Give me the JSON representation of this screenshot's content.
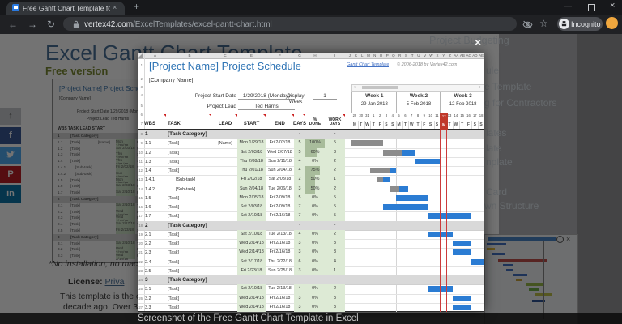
{
  "browser": {
    "tab_title": "Free Gantt Chart Template for Ex",
    "tab_close": "×",
    "new_tab": "+",
    "win_min": "—",
    "win_close": "×",
    "back": "←",
    "forward": "→",
    "reload": "↻",
    "url_domain": "vertex42.com",
    "url_path": "/ExcelTemplates/excel-gantt-chart.html",
    "star": "☆",
    "incognito_label": "Incognito"
  },
  "page": {
    "heading": "Excel Gantt Chart Template",
    "subheading": "Free version",
    "caption": "Screenshot of the Free Gantt Chart Template in Excel",
    "sidebar_fragments": [
      "Project Budgeting",
      "ule",
      "e Template",
      "g for Contractors",
      "lates",
      "late",
      "nplate",
      "Card",
      "wn Structure"
    ],
    "left_texts": {
      "quote": "*No installation, no macro",
      "license_label": "License:",
      "license_link": "Priva",
      "line1": "This template is the origin",
      "line2": "decade ago. Over 3 mill"
    },
    "social": [
      "share",
      "facebook",
      "twitter",
      "pinterest",
      "linkedin"
    ],
    "social_glyphs": [
      "↑",
      "f",
      "",
      "P",
      "in"
    ]
  },
  "lightbox": {
    "close": "×"
  },
  "sheet": {
    "title": "[Project Name] Project Schedule",
    "company": "[Company Name]",
    "link_text": "Gantt Chart Template",
    "copyright": "© 2006-2018 by Vertex42.com",
    "start_date_label": "Project Start Date",
    "start_date_value": "1/29/2018 (Monday)",
    "display_week_label": "Display Week",
    "display_week_value": "1",
    "lead_label": "Project Lead",
    "lead_value": "Ted Harris",
    "scroll_left": "‹",
    "scroll_right": "›",
    "col_letters": [
      "A",
      "B",
      "C",
      "E",
      "F",
      "G",
      "H",
      "I"
    ],
    "gantt_letters": [
      "J",
      "K",
      "L",
      "M",
      "N",
      "O",
      "P",
      "Q",
      "R",
      "S",
      "T",
      "U",
      "V",
      "W",
      "X",
      "Y",
      "Z",
      "AA",
      "AB",
      "AC",
      "AD",
      "AE"
    ],
    "headers": [
      "WBS",
      "TASK",
      "LEAD",
      "START",
      "END",
      "DAYS",
      "% DONE",
      "WORK DAYS"
    ],
    "header_row_numbers": [
      "1",
      "2",
      "3",
      "4",
      "5",
      "6",
      "7"
    ],
    "weeks": [
      {
        "name": "Week 1",
        "date": "29 Jan 2018",
        "days": [
          "29",
          "30",
          "31",
          "1",
          "2",
          "3",
          "4"
        ]
      },
      {
        "name": "Week 2",
        "date": "5 Feb 2018",
        "days": [
          "5",
          "6",
          "7",
          "8",
          "9",
          "10",
          "11"
        ]
      },
      {
        "name": "Week 3",
        "date": "12 Feb 2018",
        "days": [
          "12",
          "13",
          "14",
          "15",
          "16",
          "17",
          "18"
        ]
      }
    ],
    "day_letters": [
      "M",
      "T",
      "W",
      "T",
      "F",
      "S",
      "S"
    ],
    "today_day_index": 14,
    "category_dash": "-",
    "colors": {
      "bar_blue": "#2b7cd3",
      "bar_gray": "#8c8c8c",
      "green_light": "#ddead5",
      "green_fill": "#a8bc9b",
      "today_red": "#c0392b",
      "category_bg": "#d9d9d9",
      "title_blue": "#2e74b5"
    },
    "rows": [
      {
        "n": "8",
        "wbs": "1",
        "task": "[Task Category]",
        "category": true,
        "days": "-",
        "work": "-"
      },
      {
        "n": "9",
        "wbs": "1.1",
        "task": "[Task]",
        "lead": "[Name]",
        "start": "Mon 1/29/18",
        "end": "Fri 2/02/18",
        "days": "5",
        "pct": "100%",
        "pct_value": 100,
        "work": "5",
        "bar": {
          "start": 1,
          "len": 5,
          "done": 5
        }
      },
      {
        "n": "10",
        "wbs": "1.2",
        "task": "[Task]",
        "start": "Sat 2/03/18",
        "end": "Wed 2/07/18",
        "days": "5",
        "pct": "60%",
        "pct_value": 60,
        "work": "3",
        "bar": {
          "start": 6,
          "len": 5,
          "done": 3
        }
      },
      {
        "n": "11",
        "wbs": "1.3",
        "task": "[Task]",
        "start": "Thu 2/08/18",
        "end": "Sun 2/11/18",
        "days": "4",
        "pct": "0%",
        "pct_value": 0,
        "work": "2",
        "bar": {
          "start": 11,
          "len": 4,
          "done": 0
        }
      },
      {
        "n": "12",
        "wbs": "1.4",
        "task": "[Task]",
        "start": "Thu 2/01/18",
        "end": "Sun 2/04/18",
        "days": "4",
        "pct": "75%",
        "pct_value": 75,
        "work": "2",
        "bar": {
          "start": 4,
          "len": 4,
          "done": 3
        }
      },
      {
        "n": "13",
        "wbs": "1.4.1",
        "task": "[Sub-task]",
        "sub": true,
        "start": "Fri 2/02/18",
        "end": "Sat 2/03/18",
        "days": "2",
        "pct": "50%",
        "pct_value": 50,
        "work": "1",
        "bar": {
          "start": 5,
          "len": 2,
          "done": 1
        }
      },
      {
        "n": "14",
        "wbs": "1.4.2",
        "task": "[Sub-task]",
        "sub": true,
        "start": "Sun 2/04/18",
        "end": "Tue 2/06/18",
        "days": "3",
        "pct": "50%",
        "pct_value": 50,
        "work": "2",
        "bar": {
          "start": 7,
          "len": 3,
          "done": 1.5
        }
      },
      {
        "n": "15",
        "wbs": "1.5",
        "task": "[Task]",
        "start": "Mon 2/05/18",
        "end": "Fri 2/09/18",
        "days": "5",
        "pct": "0%",
        "pct_value": 0,
        "work": "5",
        "bar": {
          "start": 8,
          "len": 5,
          "done": 0
        }
      },
      {
        "n": "16",
        "wbs": "1.6",
        "task": "[Task]",
        "start": "Sat 2/03/18",
        "end": "Fri 2/09/18",
        "days": "7",
        "pct": "0%",
        "pct_value": 0,
        "work": "5",
        "bar": {
          "start": 6,
          "len": 7,
          "done": 0
        }
      },
      {
        "n": "17",
        "wbs": "1.7",
        "task": "[Task]",
        "start": "Sat 2/10/18",
        "end": "Fri 2/16/18",
        "days": "7",
        "pct": "0%",
        "pct_value": 0,
        "work": "5",
        "bar": {
          "start": 13,
          "len": 7,
          "done": 0
        }
      },
      {
        "n": "18",
        "wbs": "2",
        "task": "[Task Category]",
        "category": true,
        "days": "-",
        "work": "-"
      },
      {
        "n": "19",
        "wbs": "2.1",
        "task": "[Task]",
        "start": "Sat 2/10/18",
        "end": "Tue 2/13/18",
        "days": "4",
        "pct": "0%",
        "pct_value": 0,
        "work": "2",
        "bar": {
          "start": 13,
          "len": 4,
          "done": 0
        }
      },
      {
        "n": "20",
        "wbs": "2.2",
        "task": "[Task]",
        "start": "Wed 2/14/18",
        "end": "Fri 2/16/18",
        "days": "3",
        "pct": "0%",
        "pct_value": 0,
        "work": "3",
        "bar": {
          "start": 17,
          "len": 3,
          "done": 0
        }
      },
      {
        "n": "21",
        "wbs": "2.3",
        "task": "[Task]",
        "start": "Wed 2/14/18",
        "end": "Fri 2/16/18",
        "days": "3",
        "pct": "0%",
        "pct_value": 0,
        "work": "3",
        "bar": {
          "start": 17,
          "len": 3,
          "done": 0
        }
      },
      {
        "n": "22",
        "wbs": "2.4",
        "task": "[Task]",
        "start": "Sat 2/17/18",
        "end": "Thu 2/22/18",
        "days": "6",
        "pct": "0%",
        "pct_value": 0,
        "work": "4",
        "bar": {
          "start": 20,
          "len": 2,
          "done": 0
        }
      },
      {
        "n": "23",
        "wbs": "2.5",
        "task": "[Task]",
        "start": "Fri 2/23/18",
        "end": "Sun 2/25/18",
        "days": "3",
        "pct": "0%",
        "pct_value": 0,
        "work": "1"
      },
      {
        "n": "24",
        "wbs": "3",
        "task": "[Task Category]",
        "category": true,
        "days": "-",
        "work": "-"
      },
      {
        "n": "25",
        "wbs": "3.1",
        "task": "[Task]",
        "start": "Sat 2/10/18",
        "end": "Tue 2/13/18",
        "days": "4",
        "pct": "0%",
        "pct_value": 0,
        "work": "2",
        "bar": {
          "start": 13,
          "len": 4,
          "done": 0
        }
      },
      {
        "n": "26",
        "wbs": "3.2",
        "task": "[Task]",
        "start": "Wed 2/14/18",
        "end": "Fri 2/16/18",
        "days": "3",
        "pct": "0%",
        "pct_value": 0,
        "work": "3",
        "bar": {
          "start": 17,
          "len": 3,
          "done": 0
        }
      },
      {
        "n": "27",
        "wbs": "3.3",
        "task": "[Task]",
        "start": "Wed 2/14/18",
        "end": "Fri 2/16/18",
        "days": "3",
        "pct": "0%",
        "pct_value": 0,
        "work": "3",
        "bar": {
          "start": 17,
          "len": 3,
          "done": 0
        }
      }
    ]
  }
}
